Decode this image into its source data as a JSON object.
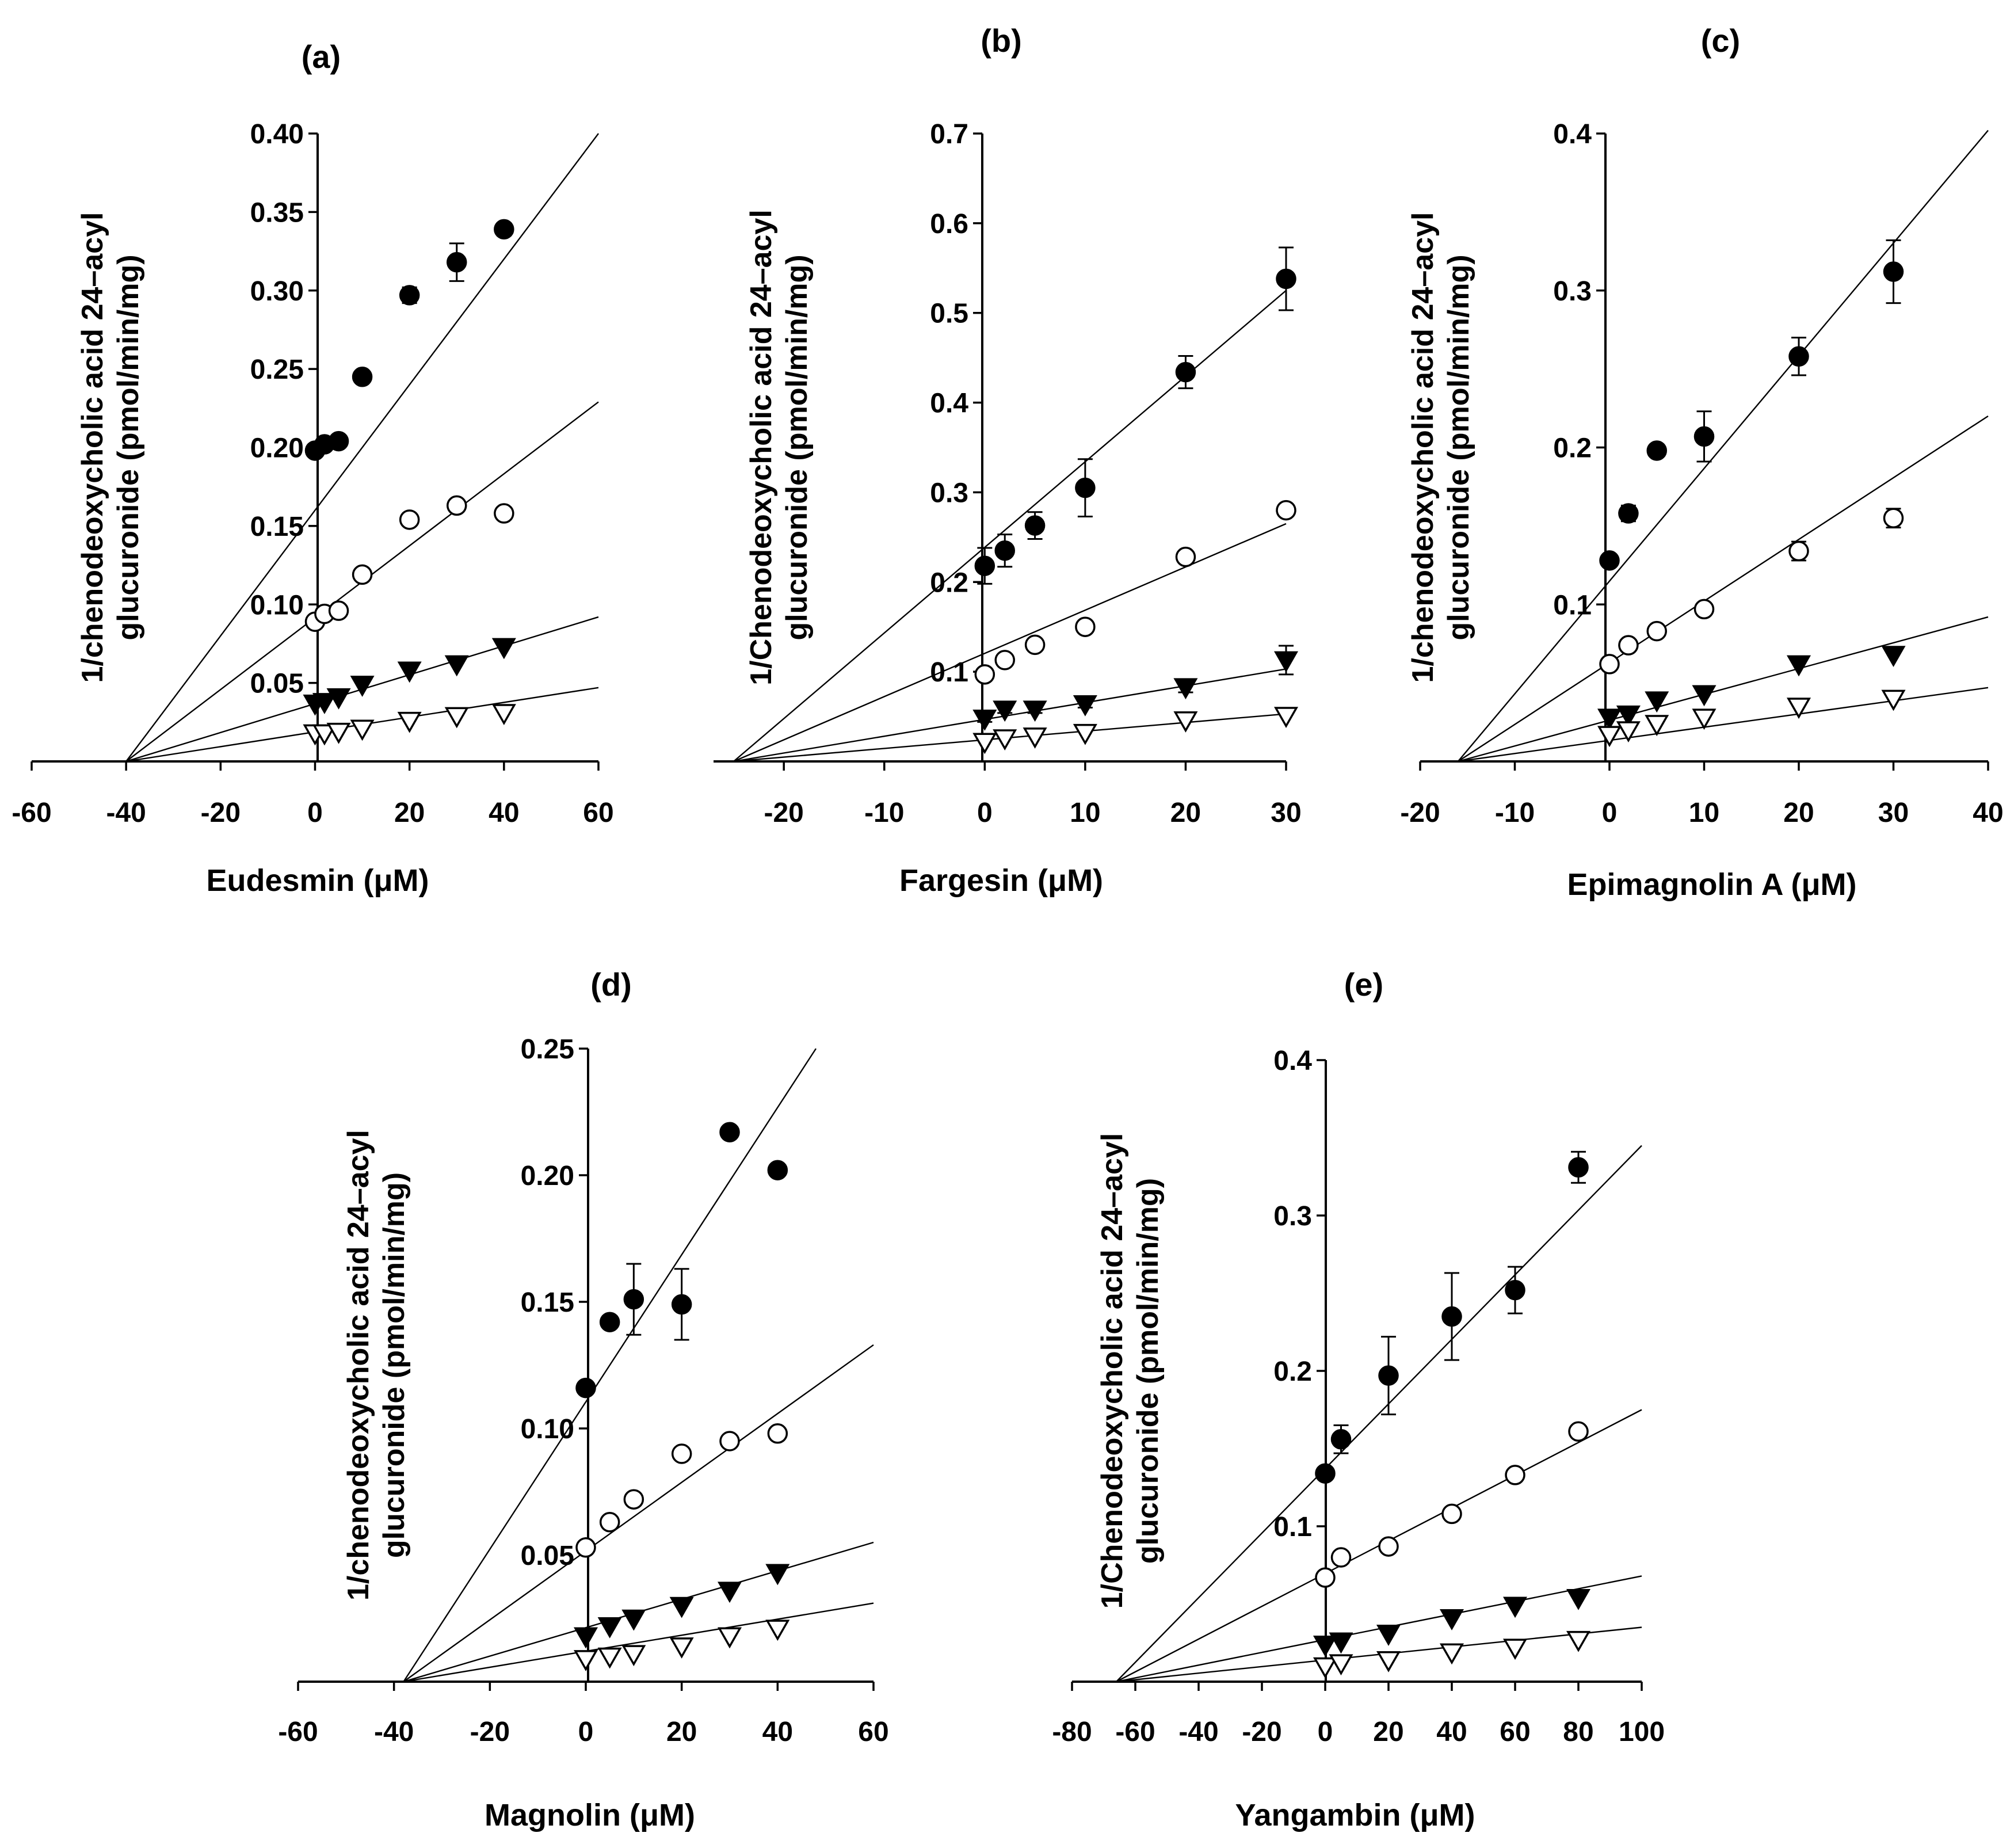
{
  "figure": {
    "description_free": true,
    "series_styles": [
      "filled-circle",
      "open-circle",
      "filled-triangle-down",
      "open-triangle-down"
    ]
  },
  "chart_data": [
    {
      "type": "scatter",
      "panel": "(a)",
      "title": "(a)",
      "xlabel": "Eudesmin (μM)",
      "ylabel": [
        "1/chenodeoxycholic acid 24–acyl",
        "glucuronide (pmol/min/mg)"
      ],
      "xlim": [
        -60,
        60
      ],
      "ylim": [
        0,
        0.4
      ],
      "xticks": [
        -60,
        -40,
        -20,
        0,
        20,
        40,
        60
      ],
      "xtick_labels": [
        "-60",
        "-40",
        "-20",
        "0",
        "20",
        "40",
        "60"
      ],
      "yticks": [
        0.05,
        0.1,
        0.15,
        0.2,
        0.25,
        0.3,
        0.35,
        0.4
      ],
      "ytick_labels": [
        "0.05",
        "0.10",
        "0.15",
        "0.20",
        "0.25",
        "0.30",
        "0.35",
        "0.40"
      ],
      "series": [
        {
          "name": "filled-circle",
          "marker": "filled-circle",
          "x": [
            0,
            2,
            5,
            10,
            20,
            30,
            40
          ],
          "y": [
            0.198,
            0.202,
            0.204,
            0.245,
            0.297,
            0.318,
            0.339
          ],
          "err": [
            0,
            0,
            0,
            0,
            0.005,
            0.012,
            0.004
          ],
          "fit": [
            -40,
            0,
            60,
            0.4
          ]
        },
        {
          "name": "open-circle",
          "marker": "open-circle",
          "x": [
            0,
            2,
            5,
            10,
            20,
            30,
            40
          ],
          "y": [
            0.089,
            0.094,
            0.096,
            0.119,
            0.154,
            0.163,
            0.158
          ],
          "err": [
            0,
            0,
            0,
            0,
            0,
            0,
            0
          ],
          "fit": [
            -40,
            0,
            60,
            0.229
          ]
        },
        {
          "name": "filled-triangle-down",
          "marker": "filled-triangle-down",
          "x": [
            0,
            2,
            5,
            10,
            20,
            30,
            40
          ],
          "y": [
            0.037,
            0.038,
            0.041,
            0.049,
            0.058,
            0.062,
            0.073
          ],
          "err": [
            0,
            0,
            0,
            0,
            0,
            0,
            0
          ],
          "fit": [
            -40,
            0,
            60,
            0.092
          ]
        },
        {
          "name": "open-triangle-down",
          "marker": "open-triangle-down",
          "x": [
            0,
            2,
            5,
            10,
            20,
            30,
            40
          ],
          "y": [
            0.018,
            0.018,
            0.019,
            0.021,
            0.026,
            0.029,
            0.031
          ],
          "err": [
            0,
            0,
            0,
            0,
            0,
            0,
            0
          ],
          "fit": [
            -40,
            0,
            60,
            0.047
          ]
        }
      ]
    },
    {
      "type": "scatter",
      "panel": "(b)",
      "title": "(b)",
      "xlabel": "Fargesin (μM)",
      "ylabel": [
        "1/Chenodeoxycholic acid 24–acyl",
        "glucuronide (pmol/min/mg)"
      ],
      "xlim": [
        -27,
        30
      ],
      "ylim": [
        0,
        0.7
      ],
      "xticks": [
        -20,
        -10,
        0,
        10,
        20,
        30
      ],
      "xtick_labels": [
        "-20",
        "-10",
        "0",
        "10",
        "20",
        "30"
      ],
      "yticks": [
        0.1,
        0.2,
        0.3,
        0.4,
        0.5,
        0.6,
        0.7
      ],
      "ytick_labels": [
        "0.1",
        "0.2",
        "0.3",
        "0.4",
        "0.5",
        "0.6",
        "0.7"
      ],
      "series": [
        {
          "name": "filled-circle",
          "marker": "filled-circle",
          "x": [
            0,
            2,
            5,
            10,
            20,
            30
          ],
          "y": [
            0.218,
            0.235,
            0.263,
            0.305,
            0.434,
            0.538
          ],
          "err": [
            0.02,
            0.018,
            0.015,
            0.032,
            0.018,
            0.035
          ],
          "fit": [
            -25,
            0,
            30,
            0.525
          ]
        },
        {
          "name": "open-circle",
          "marker": "open-circle",
          "x": [
            0,
            2,
            5,
            10,
            20,
            30
          ],
          "y": [
            0.097,
            0.113,
            0.13,
            0.15,
            0.228,
            0.28
          ],
          "err": [
            0,
            0,
            0,
            0,
            0,
            0
          ],
          "fit": [
            -25,
            0,
            30,
            0.265
          ]
        },
        {
          "name": "filled-triangle-down",
          "marker": "filled-triangle-down",
          "x": [
            0,
            2,
            5,
            10,
            20,
            30
          ],
          "y": [
            0.048,
            0.058,
            0.058,
            0.064,
            0.083,
            0.113
          ],
          "err": [
            0.004,
            0.004,
            0.004,
            0.004,
            0.006,
            0.016
          ],
          "fit": [
            -25,
            0,
            30,
            0.103
          ]
        },
        {
          "name": "open-triangle-down",
          "marker": "open-triangle-down",
          "x": [
            0,
            2,
            5,
            10,
            20,
            30
          ],
          "y": [
            0.022,
            0.026,
            0.028,
            0.032,
            0.046,
            0.051
          ],
          "err": [
            0,
            0,
            0,
            0,
            0,
            0
          ],
          "fit": [
            -25,
            0,
            30,
            0.053
          ]
        }
      ]
    },
    {
      "type": "scatter",
      "panel": "(c)",
      "title": "(c)",
      "xlabel": "Epimagnolin A (μM)",
      "ylabel": [
        "1/chenodeoxycholic acid 24–acyl",
        "glucuronide (pmol/min/mg)"
      ],
      "xlim": [
        -20,
        40
      ],
      "ylim": [
        0,
        0.4
      ],
      "xticks": [
        -20,
        -10,
        0,
        10,
        20,
        30,
        40
      ],
      "xtick_labels": [
        "-20",
        "-10",
        "0",
        "10",
        "20",
        "30",
        "40"
      ],
      "yticks": [
        0.1,
        0.2,
        0.3,
        0.4
      ],
      "ytick_labels": [
        "0.1",
        "0.2",
        "0.3",
        "0.4"
      ],
      "series": [
        {
          "name": "filled-circle",
          "marker": "filled-circle",
          "x": [
            0,
            2,
            5,
            10,
            20,
            30
          ],
          "y": [
            0.128,
            0.158,
            0.198,
            0.207,
            0.258,
            0.312
          ],
          "err": [
            0,
            0.005,
            0,
            0.016,
            0.012,
            0.02
          ],
          "fit": [
            -16,
            0,
            40,
            0.402
          ]
        },
        {
          "name": "open-circle",
          "marker": "open-circle",
          "x": [
            0,
            2,
            5,
            10,
            20,
            30
          ],
          "y": [
            0.062,
            0.074,
            0.083,
            0.097,
            0.134,
            0.155
          ],
          "err": [
            0,
            0,
            0,
            0,
            0.006,
            0.006
          ],
          "fit": [
            -16,
            0,
            40,
            0.22
          ]
        },
        {
          "name": "filled-triangle-down",
          "marker": "filled-triangle-down",
          "x": [
            0,
            2,
            5,
            10,
            20,
            30
          ],
          "y": [
            0.028,
            0.03,
            0.039,
            0.043,
            0.062,
            0.068
          ],
          "err": [
            0,
            0,
            0,
            0,
            0,
            0
          ],
          "fit": [
            -16,
            0,
            40,
            0.092
          ]
        },
        {
          "name": "open-triangle-down",
          "marker": "open-triangle-down",
          "x": [
            0,
            2,
            5,
            10,
            20,
            30
          ],
          "y": [
            0.017,
            0.02,
            0.024,
            0.028,
            0.035,
            0.04
          ],
          "err": [
            0,
            0,
            0,
            0,
            0,
            0
          ],
          "fit": [
            -16,
            0,
            40,
            0.047
          ]
        }
      ]
    },
    {
      "type": "scatter",
      "panel": "(d)",
      "title": "(d)",
      "xlabel": "Magnolin (μM)",
      "ylabel": [
        "1/chenodeoxycholic acid 24–acyl",
        "glucuronide (pmol/min/mg)"
      ],
      "xlim": [
        -60,
        60
      ],
      "ylim": [
        0,
        0.25
      ],
      "xticks": [
        -60,
        -40,
        -20,
        0,
        20,
        40,
        60
      ],
      "xtick_labels": [
        "-60",
        "-40",
        "-20",
        "0",
        "20",
        "40",
        "60"
      ],
      "yticks": [
        0.05,
        0.1,
        0.15,
        0.2,
        0.25
      ],
      "ytick_labels": [
        "0.05",
        "0.10",
        "0.15",
        "0.20",
        "0.25"
      ],
      "series": [
        {
          "name": "filled-circle",
          "marker": "filled-circle",
          "x": [
            0,
            5,
            10,
            20,
            30,
            40
          ],
          "y": [
            0.116,
            0.142,
            0.151,
            0.149,
            0.217,
            0.202
          ],
          "err": [
            0,
            0,
            0.014,
            0.014,
            0,
            0
          ],
          "fit": [
            -38,
            0,
            48,
            0.25
          ]
        },
        {
          "name": "open-circle",
          "marker": "open-circle",
          "x": [
            0,
            5,
            10,
            20,
            30,
            40
          ],
          "y": [
            0.053,
            0.063,
            0.072,
            0.09,
            0.095,
            0.098
          ],
          "err": [
            0,
            0,
            0,
            0,
            0,
            0
          ],
          "fit": [
            -38,
            0,
            60,
            0.133
          ]
        },
        {
          "name": "filled-triangle-down",
          "marker": "filled-triangle-down",
          "x": [
            0,
            5,
            10,
            20,
            30,
            40
          ],
          "y": [
            0.018,
            0.022,
            0.025,
            0.03,
            0.036,
            0.043
          ],
          "err": [
            0,
            0,
            0,
            0,
            0,
            0
          ],
          "fit": [
            -38,
            0,
            60,
            0.055
          ]
        },
        {
          "name": "open-triangle-down",
          "marker": "open-triangle-down",
          "x": [
            0,
            5,
            10,
            20,
            30,
            40
          ],
          "y": [
            0.009,
            0.01,
            0.011,
            0.014,
            0.018,
            0.021
          ],
          "err": [
            0,
            0,
            0,
            0,
            0,
            0
          ],
          "fit": [
            -38,
            0,
            60,
            0.031
          ]
        }
      ]
    },
    {
      "type": "scatter",
      "panel": "(e)",
      "title": "(e)",
      "xlabel": "Yangambin  (μM)",
      "ylabel": [
        "1/Chenodeoxycholic acid 24–acyl",
        "glucuronide (pmol/min/mg)"
      ],
      "xlim": [
        -80,
        100
      ],
      "ylim": [
        0,
        0.4
      ],
      "xticks": [
        -80,
        -60,
        -40,
        -20,
        0,
        20,
        40,
        60,
        80,
        100
      ],
      "xtick_labels": [
        "-80",
        "-60",
        "-40",
        "-20",
        "0",
        "20",
        "40",
        "60",
        "80",
        "100"
      ],
      "yticks": [
        0.1,
        0.2,
        0.3,
        0.4
      ],
      "ytick_labels": [
        "0.1",
        "0.2",
        "0.3",
        "0.4"
      ],
      "series": [
        {
          "name": "filled-circle",
          "marker": "filled-circle",
          "x": [
            0,
            5,
            20,
            40,
            60,
            80
          ],
          "y": [
            0.134,
            0.156,
            0.197,
            0.235,
            0.252,
            0.331
          ],
          "err": [
            0,
            0.009,
            0.025,
            0.028,
            0.015,
            0.01
          ],
          "fit": [
            -66,
            0,
            100,
            0.345
          ]
        },
        {
          "name": "open-circle",
          "marker": "open-circle",
          "x": [
            0,
            5,
            20,
            40,
            60,
            80
          ],
          "y": [
            0.067,
            0.08,
            0.087,
            0.108,
            0.133,
            0.161
          ],
          "err": [
            0,
            0,
            0,
            0,
            0,
            0
          ],
          "fit": [
            -66,
            0,
            100,
            0.175
          ]
        },
        {
          "name": "filled-triangle-down",
          "marker": "filled-triangle-down",
          "x": [
            0,
            5,
            20,
            40,
            60,
            80
          ],
          "y": [
            0.024,
            0.026,
            0.031,
            0.041,
            0.049,
            0.054
          ],
          "err": [
            0,
            0,
            0,
            0,
            0,
            0
          ],
          "fit": [
            -66,
            0,
            100,
            0.068
          ]
        },
        {
          "name": "open-triangle-down",
          "marker": "open-triangle-down",
          "x": [
            0,
            5,
            20,
            40,
            60,
            80
          ],
          "y": [
            0.01,
            0.012,
            0.014,
            0.019,
            0.022,
            0.027
          ],
          "err": [
            0,
            0,
            0,
            0,
            0,
            0
          ],
          "fit": [
            -66,
            0,
            100,
            0.035
          ]
        }
      ]
    }
  ]
}
